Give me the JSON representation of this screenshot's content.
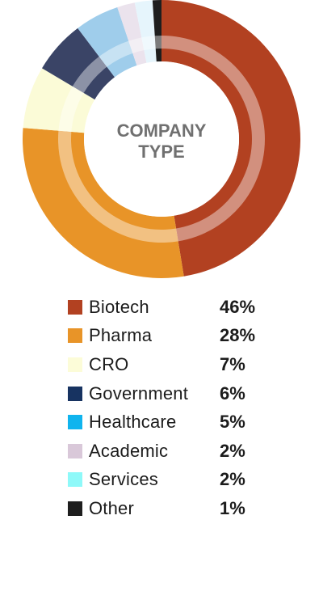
{
  "chart_data": {
    "type": "pie",
    "title": "COMPANY TYPE",
    "legend_position": "bottom",
    "categories": [
      "Biotech",
      "Pharma",
      "CRO",
      "Government",
      "Healthcare",
      "Academic",
      "Services",
      "Other"
    ],
    "values": [
      46,
      28,
      7,
      6,
      5,
      2,
      2,
      1
    ],
    "labels": [
      "46%",
      "28%",
      "7%",
      "6%",
      "5%",
      "2%",
      "2%",
      "1%"
    ],
    "colors": [
      "#b24121",
      "#e89428",
      "#fbfbd7",
      "#3a4466",
      "#9fcdeb",
      "#ebe3ed",
      "#e6f5fc",
      "#1e1e1e"
    ],
    "legend_colors": [
      "#b24121",
      "#e89428",
      "#fcfcd8",
      "#173361",
      "#10b4ee",
      "#d9c8d9",
      "#8ef9f9",
      "#1e1e1e"
    ]
  }
}
